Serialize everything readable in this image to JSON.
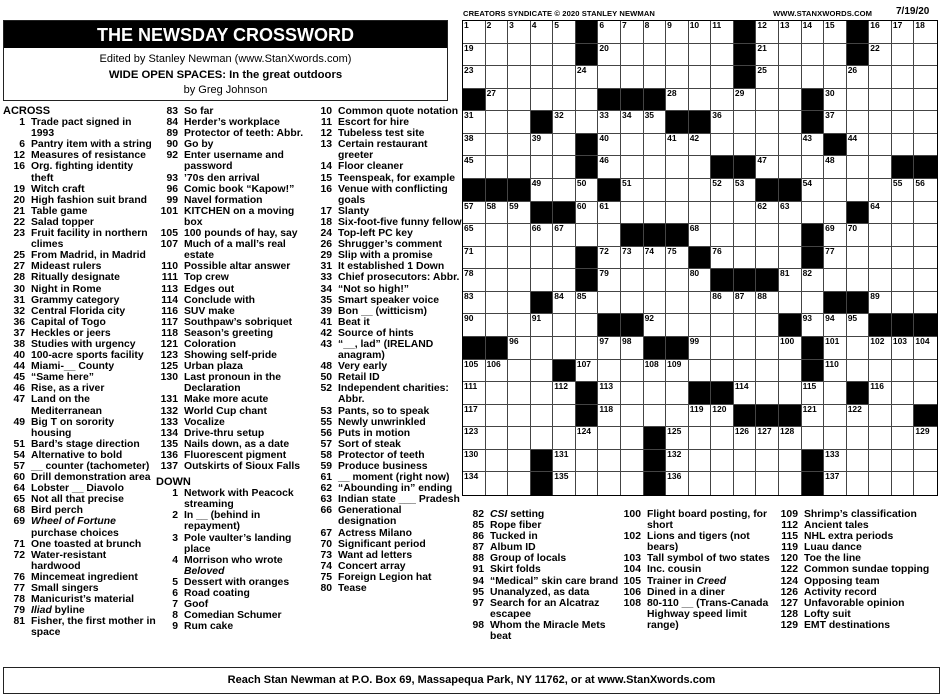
{
  "header": {
    "title": "THE NEWSDAY CROSSWORD",
    "editor": "Edited by Stanley Newman (www.StanXwords.com)",
    "theme": "WIDE OPEN SPACES: In the great outdoors",
    "author": "by Greg Johnson"
  },
  "grid_header": {
    "copyright": "CREATORS SYNDICATE © 2020 STANLEY NEWMAN",
    "website": "WWW.STANXWORDS.COM",
    "date": "7/19/20"
  },
  "grid": {
    "rows": [
      ".....#......#....#...",
      ".....#......#....#...",
      "............#........",
      "#.....###......#.....",
      "...#.....##....#.....",
      ".....#..........#....",
      ".....#.....##......##",
      "###...#......##......",
      "...##............#...",
      ".......###.....#.....",
      ".....#....#....#.....",
      ".....#.....###.......",
      "...#............##...",
      "......##......#...###",
      "##......##.....#.....",
      "....#..........#.....",
      ".....#....##.....#...",
      ".....#......###.....#",
      "........#............",
      "...#....#......#.....",
      "...#....#......#....."
    ],
    "numbers": [
      1,
      2,
      3,
      4,
      5,
      6,
      7,
      8,
      9,
      10,
      11,
      12,
      13,
      14,
      15,
      16,
      17,
      18,
      19,
      20,
      21,
      22,
      23,
      24,
      25,
      26,
      27,
      28,
      29,
      30,
      31,
      32,
      33,
      34,
      35,
      36,
      37,
      38,
      39,
      40,
      41,
      42,
      43,
      44,
      45,
      46,
      47,
      48,
      49,
      50,
      51,
      52,
      53,
      54,
      55,
      56,
      57,
      58,
      59,
      60,
      61,
      62,
      63,
      64,
      65,
      66,
      67,
      68,
      69,
      70,
      71,
      72,
      73,
      74,
      75,
      76,
      77,
      78,
      79,
      80,
      81,
      82,
      83,
      84,
      85,
      86,
      87,
      88,
      89,
      90,
      91,
      92,
      93,
      94,
      95,
      96,
      97,
      98,
      99,
      100,
      101,
      102,
      103,
      104,
      105,
      106,
      107,
      108,
      109,
      110,
      111,
      112,
      113,
      114,
      115,
      116,
      117,
      118,
      119,
      120,
      121,
      122,
      123,
      124,
      125,
      126,
      127,
      128,
      129,
      130,
      131,
      132,
      133,
      134,
      135,
      136,
      137
    ]
  },
  "across_label": "ACROSS",
  "down_label": "DOWN",
  "columns": {
    "col1": [
      {
        "n": "1",
        "t": "Trade pact signed in 1993"
      },
      {
        "n": "6",
        "t": "Pantry item with a string"
      },
      {
        "n": "12",
        "t": "Measures of resistance"
      },
      {
        "n": "16",
        "t": "Org. fighting identity theft"
      },
      {
        "n": "19",
        "t": "Witch craft"
      },
      {
        "n": "20",
        "t": "High fashion suit brand"
      },
      {
        "n": "21",
        "t": "Table game"
      },
      {
        "n": "22",
        "t": "Salad topper"
      },
      {
        "n": "23",
        "t": "Fruit facility in northern climes"
      },
      {
        "n": "25",
        "t": "From Madrid, in Madrid"
      },
      {
        "n": "27",
        "t": "Mideast rulers"
      },
      {
        "n": "28",
        "t": "Ritually designate"
      },
      {
        "n": "30",
        "t": "Night in Rome"
      },
      {
        "n": "31",
        "t": "Grammy category"
      },
      {
        "n": "32",
        "t": "Central Florida city"
      },
      {
        "n": "36",
        "t": "Capital of Togo"
      },
      {
        "n": "37",
        "t": "Heckles or jeers"
      },
      {
        "n": "38",
        "t": "Studies with urgency"
      },
      {
        "n": "40",
        "t": "100-acre sports facility"
      },
      {
        "n": "44",
        "t": "Miami-__ County"
      },
      {
        "n": "45",
        "t": "“Same here”"
      },
      {
        "n": "46",
        "t": "Rise, as a river"
      },
      {
        "n": "47",
        "t": "Land on the Mediterranean"
      },
      {
        "n": "49",
        "t": "Big T on sorority housing"
      },
      {
        "n": "51",
        "t": "Bard’s stage direction"
      },
      {
        "n": "54",
        "t": "Alternative to bold"
      },
      {
        "n": "57",
        "t": "__ counter (tachometer)"
      },
      {
        "n": "60",
        "t": "Drill demonstration area"
      },
      {
        "n": "64",
        "t": "Lobster __ Diavolo"
      },
      {
        "n": "65",
        "t": "Not all that precise"
      },
      {
        "n": "68",
        "t": "Bird perch"
      },
      {
        "n": "69",
        "t": "Wheel of Fortune purchase choices",
        "i": "Wheel of Fortune"
      },
      {
        "n": "71",
        "t": "One toasted at brunch"
      },
      {
        "n": "72",
        "t": "Water-resistant hardwood"
      },
      {
        "n": "76",
        "t": "Mincemeat ingredient"
      },
      {
        "n": "77",
        "t": "Small singers"
      },
      {
        "n": "78",
        "t": "Manicurist’s material"
      },
      {
        "n": "79",
        "t": "Iliad byline",
        "i": "Iliad"
      },
      {
        "n": "81",
        "t": "Fisher, the first mother in space"
      }
    ],
    "col2": [
      {
        "n": "83",
        "t": "So far"
      },
      {
        "n": "84",
        "t": "Herder’s workplace"
      },
      {
        "n": "89",
        "t": "Protector of teeth: Abbr."
      },
      {
        "n": "90",
        "t": "Go by"
      },
      {
        "n": "92",
        "t": "Enter username and password"
      },
      {
        "n": "93",
        "t": "’70s den arrival"
      },
      {
        "n": "96",
        "t": "Comic book “Kapow!”"
      },
      {
        "n": "99",
        "t": "Navel formation"
      },
      {
        "n": "101",
        "t": "KITCHEN on a moving box"
      },
      {
        "n": "105",
        "t": "100 pounds of hay, say"
      },
      {
        "n": "107",
        "t": "Much of a mall’s real estate"
      },
      {
        "n": "110",
        "t": "Possible altar answer"
      },
      {
        "n": "111",
        "t": "Top crew"
      },
      {
        "n": "113",
        "t": "Edges out"
      },
      {
        "n": "114",
        "t": "Conclude with"
      },
      {
        "n": "116",
        "t": "SUV make"
      },
      {
        "n": "117",
        "t": "Southpaw’s sobriquet"
      },
      {
        "n": "118",
        "t": "Season’s greeting"
      },
      {
        "n": "121",
        "t": "Coloration"
      },
      {
        "n": "123",
        "t": "Showing self-pride"
      },
      {
        "n": "125",
        "t": "Urban plaza"
      },
      {
        "n": "130",
        "t": "Last pronoun in the Declaration"
      },
      {
        "n": "131",
        "t": "Make more acute"
      },
      {
        "n": "132",
        "t": "World Cup chant"
      },
      {
        "n": "133",
        "t": "Vocalize"
      },
      {
        "n": "134",
        "t": "Drive-thru setup"
      },
      {
        "n": "135",
        "t": "Nails down, as a date"
      },
      {
        "n": "136",
        "t": "Fluorescent pigment"
      },
      {
        "n": "137",
        "t": "Outskirts of Sioux Falls"
      }
    ],
    "col2_down": [
      {
        "n": "1",
        "t": "Network with Peacock streaming"
      },
      {
        "n": "2",
        "t": "In __ (behind in repayment)"
      },
      {
        "n": "3",
        "t": "Pole vaulter’s landing place"
      },
      {
        "n": "4",
        "t": "Morrison who wrote Beloved",
        "i": "Beloved"
      },
      {
        "n": "5",
        "t": "Dessert with oranges"
      },
      {
        "n": "6",
        "t": "Road coating"
      },
      {
        "n": "7",
        "t": "Goof"
      },
      {
        "n": "8",
        "t": "Comedian Schumer"
      },
      {
        "n": "9",
        "t": "Rum cake"
      }
    ],
    "col3": [
      {
        "n": "10",
        "t": "Common quote notation"
      },
      {
        "n": "11",
        "t": "Escort for hire"
      },
      {
        "n": "12",
        "t": "Tubeless test site"
      },
      {
        "n": "13",
        "t": "Certain restaurant greeter"
      },
      {
        "n": "14",
        "t": "Floor cleaner"
      },
      {
        "n": "15",
        "t": "Teenspeak, for example"
      },
      {
        "n": "16",
        "t": "Venue with conflicting goals"
      },
      {
        "n": "17",
        "t": "Slanty"
      },
      {
        "n": "18",
        "t": "Six-foot-five funny fellow"
      },
      {
        "n": "24",
        "t": "Top-left PC key"
      },
      {
        "n": "26",
        "t": "Shrugger’s comment"
      },
      {
        "n": "29",
        "t": "Slip with a promise"
      },
      {
        "n": "31",
        "t": "It established 1 Down"
      },
      {
        "n": "33",
        "t": "Chief prosecutors: Abbr."
      },
      {
        "n": "34",
        "t": "“Not so high!”"
      },
      {
        "n": "35",
        "t": "Smart speaker voice"
      },
      {
        "n": "39",
        "t": "Bon __ (witticism)"
      },
      {
        "n": "41",
        "t": "Beat it"
      },
      {
        "n": "42",
        "t": "Source of hints"
      },
      {
        "n": "43",
        "t": "“__, lad” (IRELAND anagram)"
      },
      {
        "n": "48",
        "t": "Very early"
      },
      {
        "n": "50",
        "t": "Retail ID"
      },
      {
        "n": "52",
        "t": "Independent charities: Abbr."
      },
      {
        "n": "53",
        "t": "Pants, so to speak"
      },
      {
        "n": "55",
        "t": "Newly unwrinkled"
      },
      {
        "n": "56",
        "t": "Puts in motion"
      },
      {
        "n": "57",
        "t": "Sort of steak"
      },
      {
        "n": "58",
        "t": "Protector of teeth"
      },
      {
        "n": "59",
        "t": "Produce business"
      },
      {
        "n": "61",
        "t": "__ moment (right now)"
      },
      {
        "n": "62",
        "t": "“Abounding in” ending"
      },
      {
        "n": "63",
        "t": "Indian state ___ Pradesh"
      },
      {
        "n": "66",
        "t": "Generational designation"
      },
      {
        "n": "67",
        "t": "Actress Milano"
      },
      {
        "n": "70",
        "t": "Significant period"
      },
      {
        "n": "73",
        "t": "Want ad letters"
      },
      {
        "n": "74",
        "t": "Concert array"
      },
      {
        "n": "75",
        "t": "Foreign Legion hat"
      },
      {
        "n": "80",
        "t": "Tease"
      }
    ],
    "col4": [
      {
        "n": "82",
        "t": "CSI setting",
        "i": "CSI"
      },
      {
        "n": "85",
        "t": "Rope fiber"
      },
      {
        "n": "86",
        "t": "Tucked in"
      },
      {
        "n": "87",
        "t": "Album ID"
      },
      {
        "n": "88",
        "t": "Group of locals"
      },
      {
        "n": "91",
        "t": "Skirt folds"
      },
      {
        "n": "94",
        "t": "“Medical” skin care brand"
      },
      {
        "n": "95",
        "t": "Unanalyzed, as data"
      },
      {
        "n": "97",
        "t": "Search for an Alcatraz escapee"
      },
      {
        "n": "98",
        "t": "Whom the Miracle Mets beat"
      }
    ],
    "col5": [
      {
        "n": "100",
        "t": "Flight board posting, for short"
      },
      {
        "n": "102",
        "t": "Lions and tigers (not bears)"
      },
      {
        "n": "103",
        "t": "Tall symbol of two states"
      },
      {
        "n": "104",
        "t": "Inc. cousin"
      },
      {
        "n": "105",
        "t": "Trainer in Creed",
        "i": "Creed"
      },
      {
        "n": "106",
        "t": "Dined in a diner"
      },
      {
        "n": "108",
        "t": "80-110 __ (Trans-Canada Highway speed limit range)"
      }
    ],
    "col6": [
      {
        "n": "109",
        "t": "Shrimp’s classification"
      },
      {
        "n": "112",
        "t": "Ancient tales"
      },
      {
        "n": "115",
        "t": "NHL extra periods"
      },
      {
        "n": "119",
        "t": "Luau dance"
      },
      {
        "n": "120",
        "t": "Toe the line"
      },
      {
        "n": "122",
        "t": "Common sundae topping"
      },
      {
        "n": "124",
        "t": "Opposing team"
      },
      {
        "n": "126",
        "t": "Activity record"
      },
      {
        "n": "127",
        "t": "Unfavorable opinion"
      },
      {
        "n": "128",
        "t": "Lofty suit"
      },
      {
        "n": "129",
        "t": "EMT destinations"
      }
    ]
  },
  "footer": "Reach Stan Newman at P.O. Box 69, Massapequa Park, NY 11762, or at www.StanXwords.com"
}
